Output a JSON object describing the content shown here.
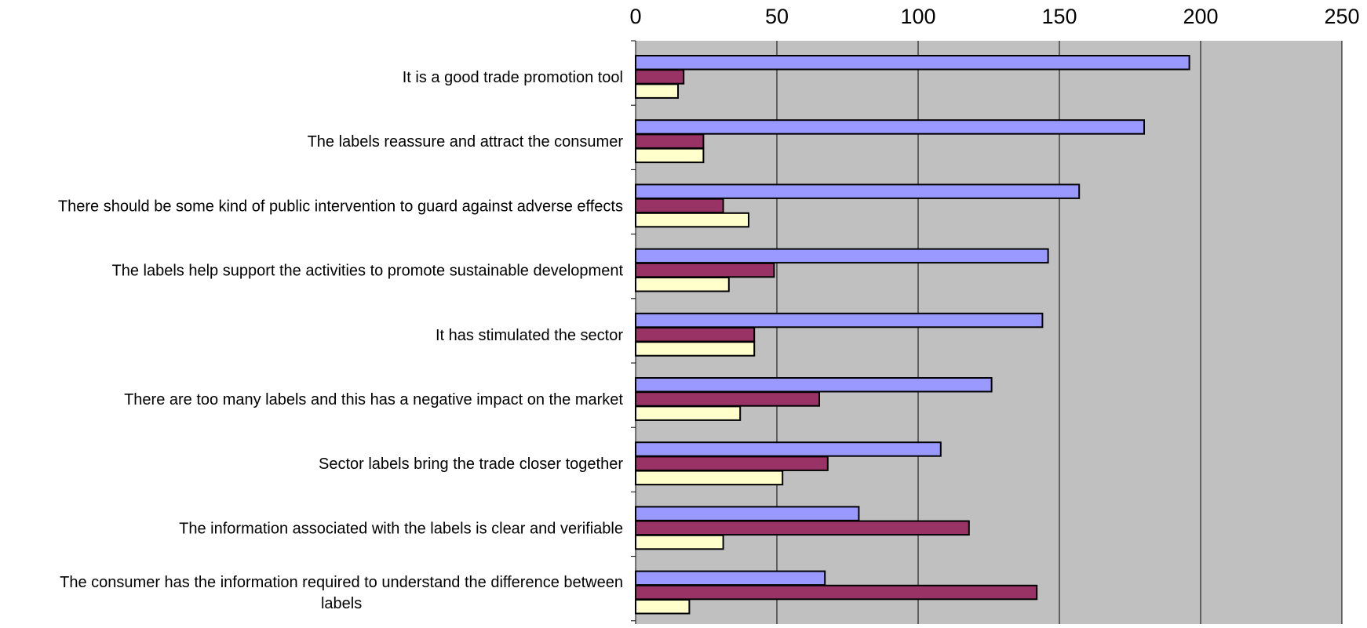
{
  "chart_data": {
    "type": "bar",
    "orientation": "horizontal",
    "title": "",
    "xlabel": "",
    "ylabel": "",
    "xlim": [
      0,
      250
    ],
    "x_ticks": [
      0,
      50,
      100,
      150,
      200,
      250
    ],
    "x_tick_labels": [
      "0",
      "50",
      "100",
      "150",
      "200",
      "250"
    ],
    "x_axis_position": "top",
    "grid": true,
    "legend": "none",
    "plot_background": "#c0c0c0",
    "categories": [
      "It is a good trade promotion tool",
      "The labels reassure and attract the consumer",
      "There should  be some kind of public intervention to guard against adverse effects",
      "The labels help support the activities to promote sustainable development",
      "It has stimulated the sector",
      "There are too many labels and this has a negative impact on the market",
      "Sector labels bring the trade closer together",
      "The information associated with the labels is clear and verifiable",
      "The consumer has the information required to understand the difference between labels"
    ],
    "category_label_lines": [
      [
        "It is a good trade promotion tool"
      ],
      [
        "The labels reassure and attract the consumer"
      ],
      [
        "There should  be some kind of public intervention to guard against adverse effects"
      ],
      [
        "The labels help support the activities to promote sustainable development"
      ],
      [
        "It has stimulated the sector"
      ],
      [
        "There are too many labels and this has a negative impact on the market"
      ],
      [
        "Sector labels bring the trade closer together"
      ],
      [
        "The information associated with the labels is clear and verifiable"
      ],
      [
        "The consumer has the information required to understand the difference between",
        "labels"
      ]
    ],
    "series": [
      {
        "color": "#9999ff",
        "values": [
          196,
          180,
          157,
          146,
          144,
          126,
          108,
          79,
          67
        ]
      },
      {
        "color": "#993366",
        "values": [
          17,
          24,
          31,
          49,
          42,
          65,
          68,
          118,
          142
        ]
      },
      {
        "color": "#ffffcc",
        "values": [
          15,
          24,
          40,
          33,
          42,
          37,
          52,
          31,
          19
        ]
      }
    ]
  }
}
